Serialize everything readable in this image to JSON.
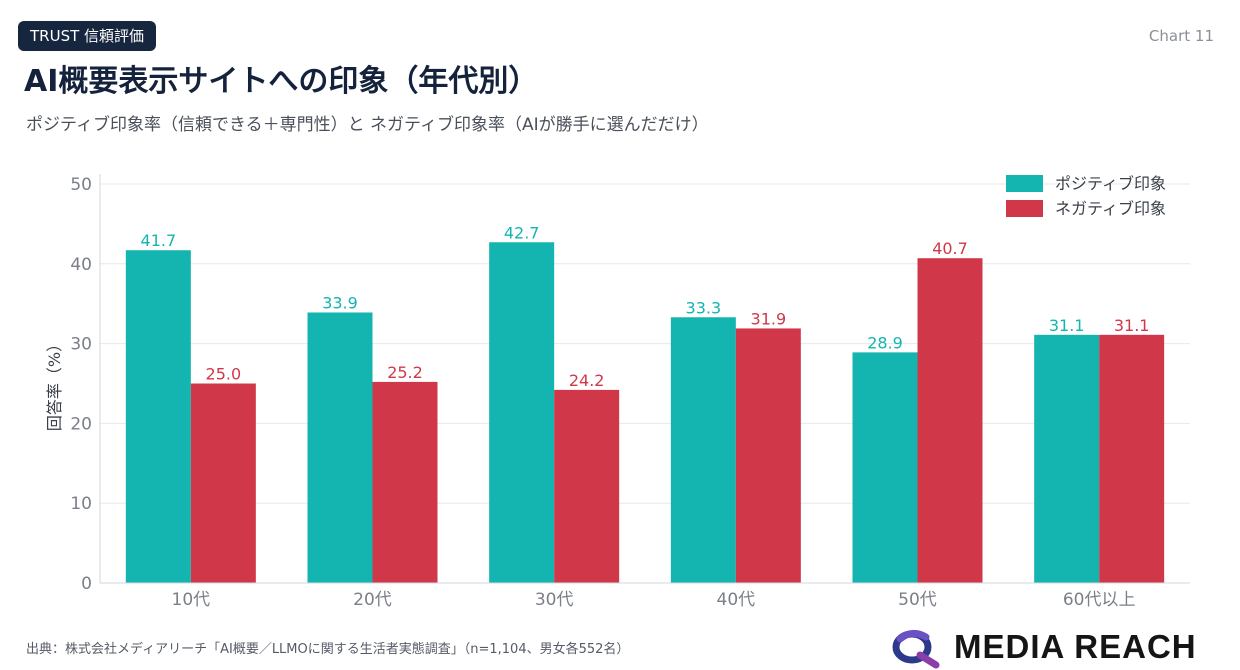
{
  "header": {
    "badge": "TRUST  信頼評価",
    "chart_number": "Chart 11",
    "title": "AI概要表示サイトへの印象（年代別）",
    "subtitle": "ポジティブ印象率（信頼できる＋専門性）と ネガティブ印象率（AIが勝手に選んだだけ）"
  },
  "colors": {
    "positive": "#14b5b0",
    "negative": "#d0384a",
    "grid": "#e6e8eb",
    "axis_text": "#7a7f88"
  },
  "chart_data": {
    "type": "bar",
    "title": "AI概要表示サイトへの印象（年代別）",
    "categories": [
      "10代",
      "20代",
      "30代",
      "40代",
      "50代",
      "60代以上"
    ],
    "series": [
      {
        "name": "ポジティブ印象",
        "values": [
          41.7,
          33.9,
          42.7,
          33.3,
          28.9,
          31.1
        ]
      },
      {
        "name": "ネガティブ印象",
        "values": [
          25.0,
          25.2,
          24.2,
          31.9,
          40.7,
          31.1
        ]
      }
    ],
    "xlabel": "",
    "ylabel": "回答率（%）",
    "ylim": [
      0,
      50
    ],
    "yticks": [
      0,
      10,
      20,
      30,
      40,
      50
    ],
    "grid": true,
    "legend": "top-right"
  },
  "footer": {
    "source": "出典：株式会社メディアリーチ「AI概要／LLMOに関する生活者実態調査」（n=1,104、男女各552名）"
  },
  "logo": {
    "icon": "media-reach-logo-icon",
    "text": "MEDIA REACH"
  }
}
